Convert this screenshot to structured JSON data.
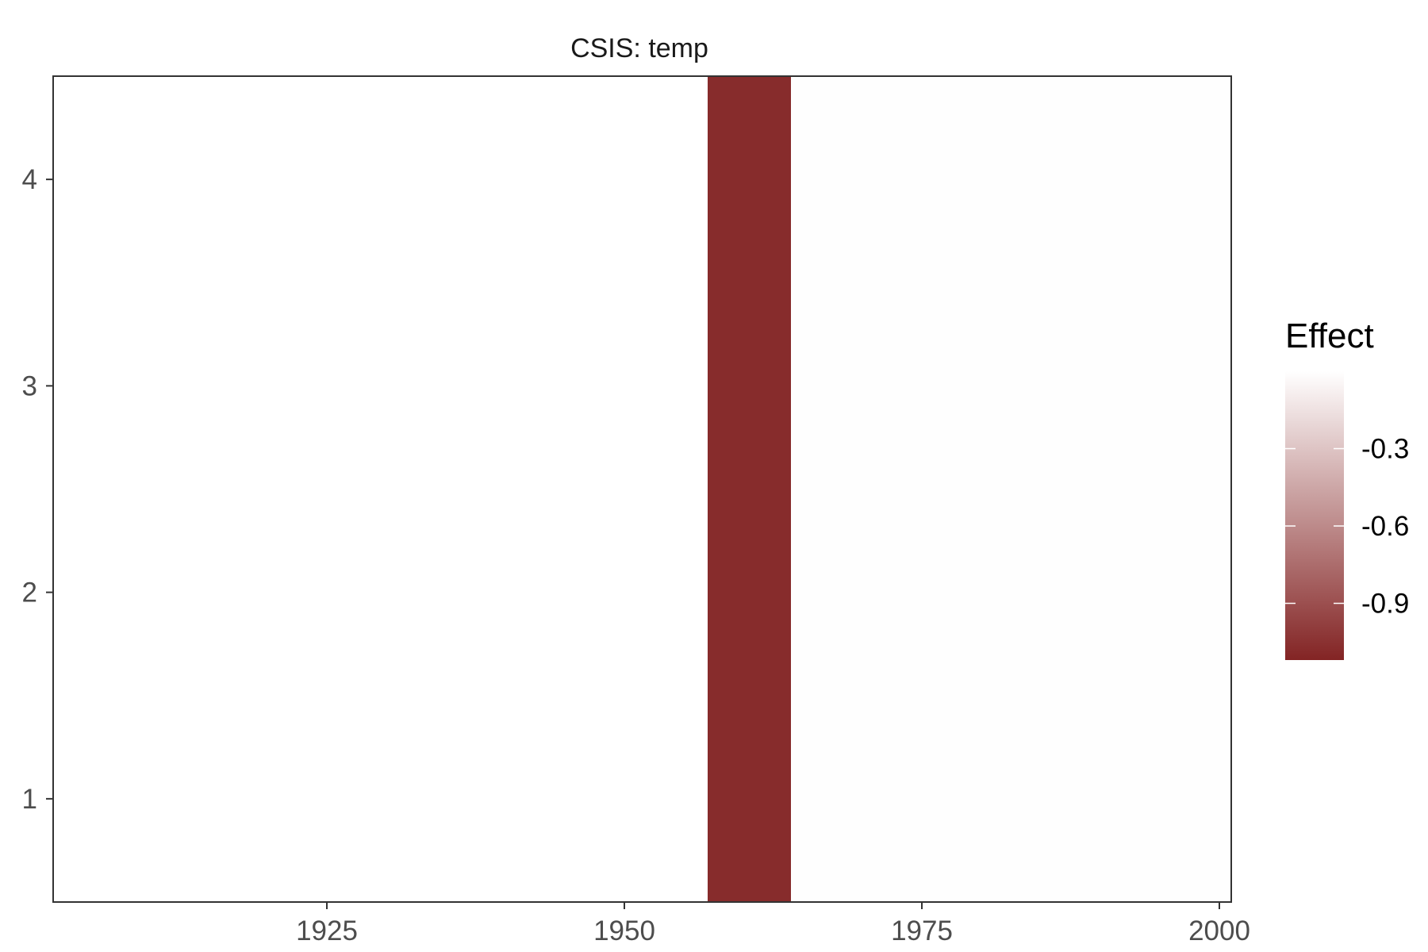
{
  "chart_data": {
    "type": "heatmap",
    "title": "CSIS: temp",
    "xlabel": "",
    "ylabel": "",
    "xlim": [
      1902,
      2001
    ],
    "ylim": [
      0.5,
      4.5
    ],
    "x_ticks": [
      1925,
      1950,
      1975,
      2000
    ],
    "y_ticks": [
      1,
      2,
      3,
      4
    ],
    "grid": false,
    "tiles": [
      {
        "x": [
          1902,
          1957
        ],
        "y": [
          0.5,
          4.5
        ],
        "value": 0.0
      },
      {
        "x": [
          1957,
          1964
        ],
        "y": [
          0.5,
          4.5
        ],
        "value": -1.08
      },
      {
        "x": [
          1964,
          2001
        ],
        "y": [
          0.5,
          4.5
        ],
        "value": -0.005
      }
    ],
    "legend": {
      "title": "Effect",
      "placement": "right",
      "range": [
        -1.12,
        0.0
      ],
      "breaks": [
        -0.3,
        -0.6,
        -0.9
      ],
      "break_labels": [
        "-0.3",
        "-0.6",
        "-0.9"
      ],
      "low_color": "#832424",
      "high_color": "#ffffff"
    }
  }
}
